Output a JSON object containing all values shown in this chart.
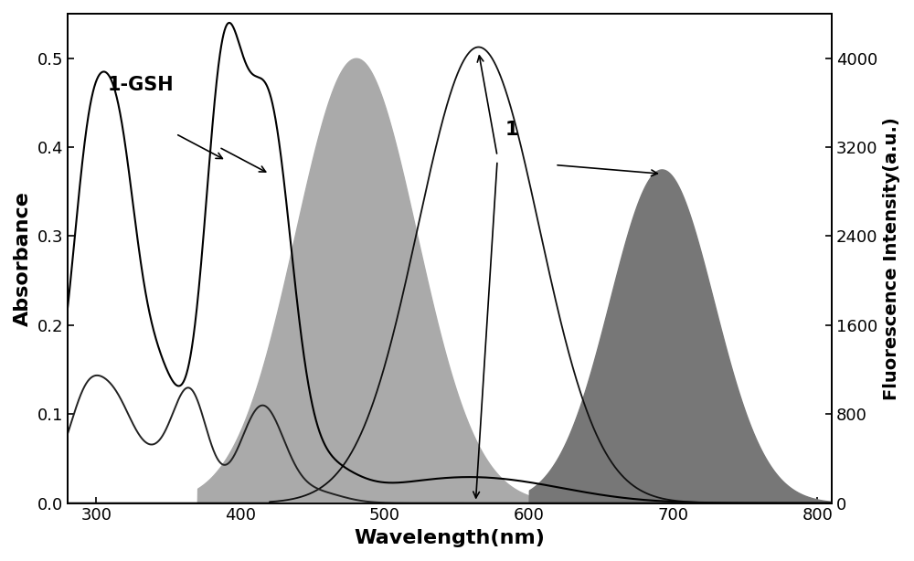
{
  "xlim": [
    280,
    810
  ],
  "ylim_left": [
    0.0,
    0.55
  ],
  "ylim_right": [
    0,
    4400
  ],
  "xlabel": "Wavelength(nm)",
  "ylabel_left": "Absorbance",
  "ylabel_right": "Fluorescence Intensity(a.u.)",
  "xticks": [
    300,
    400,
    500,
    600,
    700,
    800
  ],
  "yticks_left": [
    0.0,
    0.1,
    0.2,
    0.3,
    0.4,
    0.5
  ],
  "yticks_right": [
    0,
    800,
    1600,
    2400,
    3200,
    4000
  ],
  "label_gsh": "1-GSH",
  "label_1": "1",
  "background_color": "#ffffff",
  "abs_color": "#000000",
  "fill_gsh_color": "#aaaaaa",
  "fill_1_color": "#777777"
}
